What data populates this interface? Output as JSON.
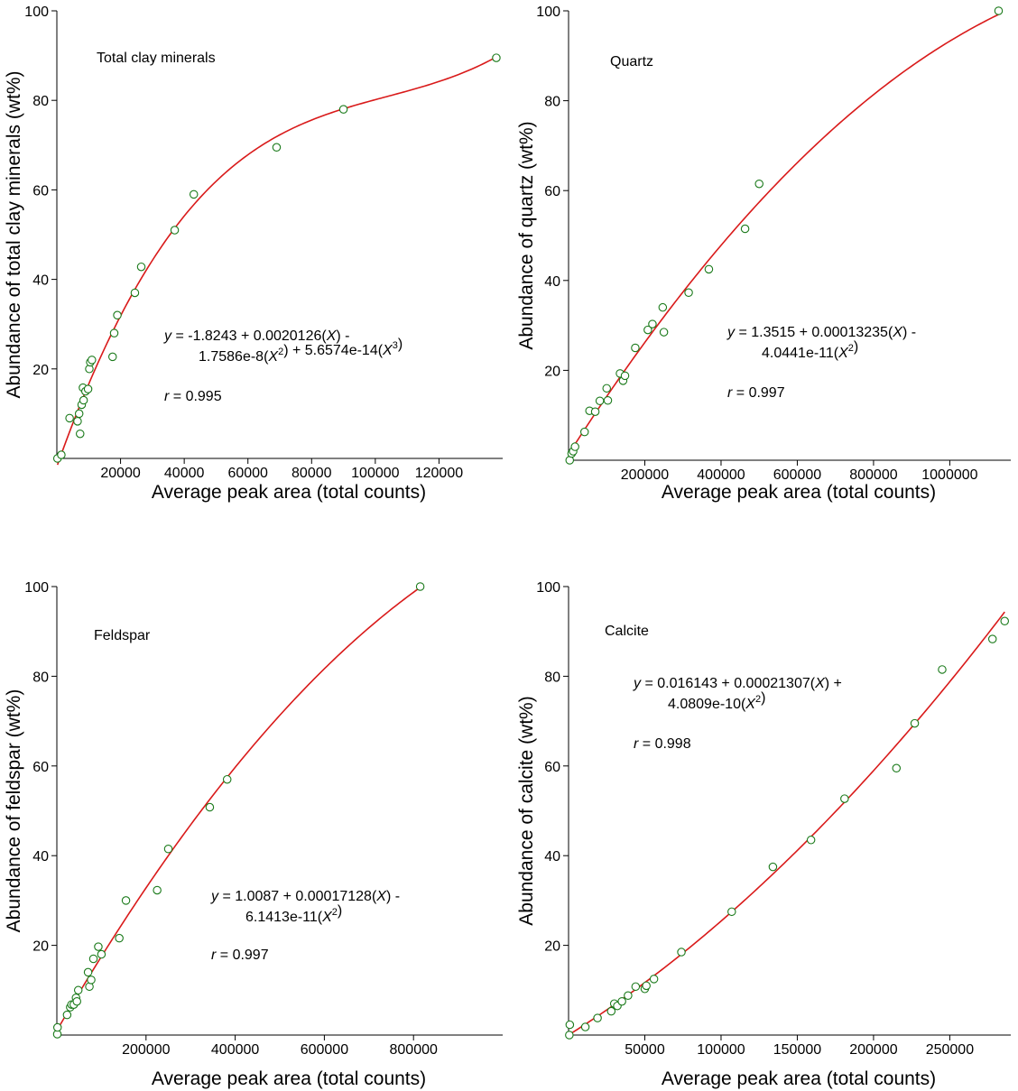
{
  "chart_data": [
    {
      "type": "scatter",
      "title": "Total clay minerals",
      "xlabel": "Average peak area (total counts)",
      "ylabel": "Abundance of total clay minerals (wt%)",
      "xlim": [
        0,
        140000
      ],
      "ylim": [
        0,
        100
      ],
      "x_ticks": [
        20000,
        40000,
        60000,
        80000,
        100000,
        120000
      ],
      "y_ticks": [
        20,
        40,
        60,
        80,
        100
      ],
      "fit": {
        "coefficients": [
          -1.8243,
          0.0020126,
          -1.7586e-08,
          5.6574e-14
        ]
      },
      "equation": {
        "y_var": "y",
        "line1": " = -1.8243 + 0.0020126(X) -",
        "line2": "1.7586e-8(X2) + 5.6574e-14(X3)",
        "r_var": "r",
        "r_text": " = 0.995"
      },
      "series": [
        {
          "x": [
            200,
            1400,
            4000,
            6500,
            7000,
            7300,
            7800,
            8200,
            8400,
            9000,
            9800,
            10200,
            10500,
            11000,
            17500,
            18000,
            19000,
            24500,
            26500,
            37000,
            43000,
            69000,
            90000,
            138000
          ],
          "y": [
            0,
            0.8,
            9,
            8.3,
            10,
            5.5,
            12,
            15.8,
            13,
            15,
            15.5,
            20,
            21.5,
            22,
            22.7,
            28,
            32,
            37,
            42.8,
            51,
            59,
            69.5,
            78,
            89.5
          ]
        }
      ]
    },
    {
      "type": "scatter",
      "title": "Quartz",
      "xlabel": "Average peak area (total counts)",
      "ylabel": "Abundance of quartz (wt%)",
      "xlim": [
        0,
        1160000
      ],
      "ylim": [
        0,
        100
      ],
      "x_ticks": [
        200000,
        400000,
        600000,
        800000,
        1000000
      ],
      "y_ticks": [
        20,
        40,
        60,
        80,
        100
      ],
      "fit": {
        "coefficients": [
          1.3515,
          0.00013235,
          -4.0441e-11
        ]
      },
      "equation": {
        "y_var": "y",
        "line1": " = 1.3515 + 0.00013235(X) -",
        "line2": "4.0441e-11(X2)",
        "r_var": "r",
        "r_text": " = 0.997"
      },
      "series": [
        {
          "x": [
            3000,
            8000,
            12000,
            17000,
            42000,
            55000,
            70000,
            82000,
            100000,
            103000,
            135000,
            143000,
            148000,
            175000,
            208000,
            220000,
            247000,
            250000,
            315000,
            368000,
            463000,
            500000,
            1128000
          ],
          "y": [
            0,
            1.5,
            2,
            3,
            6.3,
            11,
            10.8,
            13.2,
            16,
            13.3,
            19.3,
            17.7,
            18.8,
            25,
            29,
            30.3,
            34,
            28.5,
            37.3,
            42.5,
            51.5,
            61.5,
            100
          ]
        }
      ]
    },
    {
      "type": "scatter",
      "title": "Feldspar",
      "xlabel": "Average peak area (total counts)",
      "ylabel": "Abundance of feldspar (wt%)",
      "xlim": [
        0,
        1000000
      ],
      "ylim": [
        0,
        100
      ],
      "x_ticks": [
        200000,
        400000,
        600000,
        800000
      ],
      "y_ticks": [
        20,
        40,
        60,
        80,
        100
      ],
      "fit": {
        "coefficients": [
          1.0087,
          0.00017128,
          -6.1413e-11
        ]
      },
      "equation": {
        "y_var": "y",
        "line1": " = 1.0087 + 0.00017128(X) -",
        "line2": "6.1413e-11(X2)",
        "r_var": "r",
        "r_text": " = 0.997"
      },
      "series": [
        {
          "x": [
            1000,
            1500,
            23000,
            30000,
            33000,
            38000,
            43000,
            45000,
            48000,
            70000,
            73000,
            77000,
            82000,
            93000,
            100000,
            140000,
            155000,
            225000,
            250000,
            343000,
            382000,
            815000
          ],
          "y": [
            0.2,
            1.7,
            4.5,
            6.2,
            6.8,
            6.8,
            8.3,
            7.5,
            10,
            14,
            10.8,
            12.3,
            17,
            19.7,
            18,
            21.6,
            30,
            32.3,
            41.5,
            50.8,
            57,
            100
          ]
        }
      ]
    },
    {
      "type": "scatter",
      "title": "Calcite",
      "xlabel": "Average peak area (total counts)",
      "ylabel": "Abundance of calcite (wt%)",
      "xlim": [
        0,
        290000
      ],
      "ylim": [
        0,
        100
      ],
      "x_ticks": [
        50000,
        100000,
        150000,
        200000,
        250000
      ],
      "y_ticks": [
        20,
        40,
        60,
        80,
        100
      ],
      "fit": {
        "coefficients": [
          0.016143,
          0.00021307,
          4.0809e-10
        ]
      },
      "equation": {
        "y_var": "y",
        "line1": " = 0.016143 + 0.00021307(X) +",
        "line2": "4.0809e-10(X2)",
        "r_var": "r",
        "r_text": " = 0.998"
      },
      "series": [
        {
          "x": [
            500,
            800,
            11000,
            19000,
            28000,
            30000,
            32000,
            35000,
            39000,
            44000,
            50000,
            51000,
            56000,
            74000,
            107000,
            134000,
            159000,
            181000,
            215000,
            227000,
            245000,
            278000,
            286000
          ],
          "y": [
            0,
            2.3,
            1.8,
            3.8,
            5.3,
            7,
            6.5,
            7.5,
            8.8,
            10.8,
            10.3,
            11,
            12.5,
            18.5,
            27.5,
            37.5,
            43.5,
            52.7,
            59.5,
            69.5,
            81.5,
            88.3,
            92.3
          ]
        }
      ]
    }
  ]
}
